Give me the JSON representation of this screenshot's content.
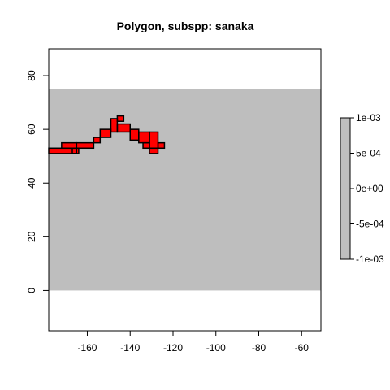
{
  "chart_data": {
    "type": "heatmap",
    "title": "Polygon, subspp: sanaka",
    "xlabel": "",
    "ylabel": "",
    "xlim": [
      -178,
      -51
    ],
    "ylim": [
      -15,
      90
    ],
    "xticks": [
      "-160",
      "-140",
      "-120",
      "-100",
      "-80",
      "-60"
    ],
    "yticks": [
      "0",
      "20",
      "40",
      "60",
      "80"
    ],
    "raster_extent": {
      "x": [
        -178,
        -51
      ],
      "y": [
        0,
        75
      ]
    },
    "raster_color": "#bebebe",
    "raster_value": 0,
    "polygon": {
      "fill": "#ff0000",
      "stroke": "#000000",
      "cells": [
        {
          "x": [
            -178,
            -165
          ],
          "y": [
            51,
            53
          ]
        },
        {
          "x": [
            -172,
            -165
          ],
          "y": [
            53,
            55
          ]
        },
        {
          "x": [
            -167,
            -164
          ],
          "y": [
            51,
            53
          ]
        },
        {
          "x": [
            -165,
            -157
          ],
          "y": [
            53,
            55
          ]
        },
        {
          "x": [
            -157,
            -154
          ],
          "y": [
            55,
            57
          ]
        },
        {
          "x": [
            -154,
            -149
          ],
          "y": [
            57,
            60
          ]
        },
        {
          "x": [
            -149,
            -146
          ],
          "y": [
            59,
            64
          ]
        },
        {
          "x": [
            -146,
            -140
          ],
          "y": [
            59,
            62
          ]
        },
        {
          "x": [
            -146,
            -143
          ],
          "y": [
            63,
            65
          ]
        },
        {
          "x": [
            -140,
            -136
          ],
          "y": [
            56,
            60
          ]
        },
        {
          "x": [
            -136,
            -131
          ],
          "y": [
            55,
            59
          ]
        },
        {
          "x": [
            -131,
            -127
          ],
          "y": [
            53,
            59
          ]
        },
        {
          "x": [
            -127,
            -124
          ],
          "y": [
            53,
            55
          ]
        },
        {
          "x": [
            -131,
            -127
          ],
          "y": [
            51,
            53
          ]
        },
        {
          "x": [
            -134,
            -131
          ],
          "y": [
            53,
            55
          ]
        }
      ]
    },
    "legend": {
      "position": "right",
      "labels": [
        "1e-03",
        "5e-04",
        "0e+00",
        "-5e-04",
        "-1e-03"
      ],
      "color": "#bebebe"
    },
    "grid": false
  }
}
